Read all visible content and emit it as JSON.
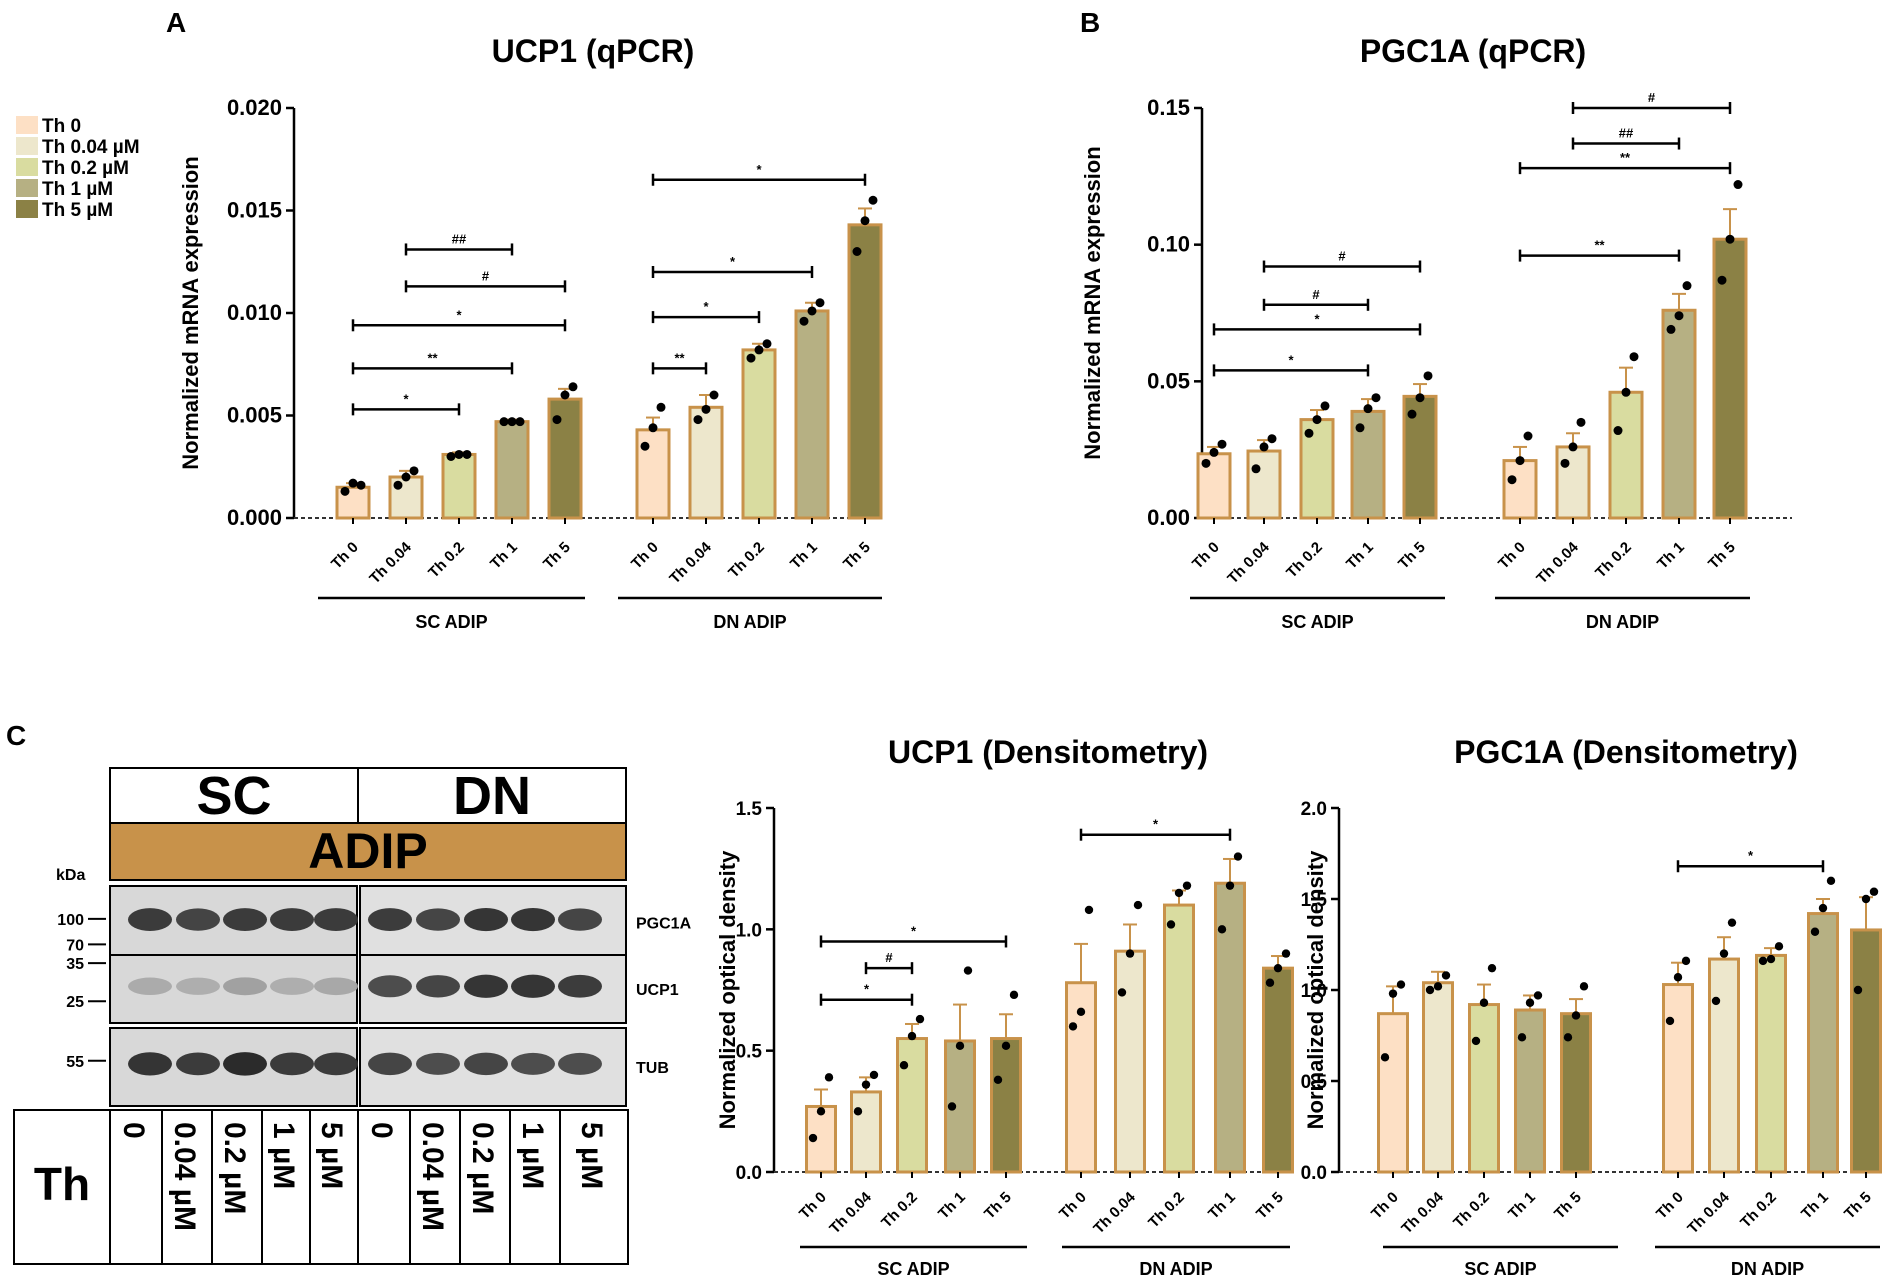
{
  "panels": {
    "A": "A",
    "B": "B",
    "C": "C"
  },
  "colors": {
    "Th 0": "#fde0c5",
    "Th 0.04": "#ede7cc",
    "Th 0.2": "#d9dca0",
    "Th 1": "#b6b083",
    "Th 5": "#8b8145",
    "outline": "#c8924a",
    "adip_band": "#c8924a"
  },
  "legend": [
    "Th 0",
    "Th 0.04 µM",
    "Th 0.2 µM",
    "Th 1 µM",
    "Th 5 µM"
  ],
  "chart_data": [
    {
      "id": "A",
      "type": "bar",
      "title": "UCP1 (qPCR)",
      "ylabel": "Normalized mRNA expression",
      "ylim": [
        0,
        0.02
      ],
      "yticks": [
        0,
        0.005,
        0.01,
        0.015,
        0.02
      ],
      "ytick_labels": [
        "0.000",
        "0.005",
        "0.010",
        "0.015",
        "0.020"
      ],
      "categories": [
        "Th 0",
        "Th 0.04",
        "Th 0.2",
        "Th 1",
        "Th 5"
      ],
      "groups": [
        {
          "name": "SC ADIP",
          "values": [
            0.0015,
            0.002,
            0.0031,
            0.0047,
            0.0058
          ],
          "errors": [
            0.0002,
            0.0003,
            0.0001,
            0.0001,
            0.0005
          ],
          "points": [
            [
              0.0013,
              0.0017,
              0.0016
            ],
            [
              0.0016,
              0.002,
              0.0023
            ],
            [
              0.003,
              0.0031,
              0.0031
            ],
            [
              0.0047,
              0.0047,
              0.0047
            ],
            [
              0.0048,
              0.006,
              0.0064
            ]
          ],
          "sig": [
            {
              "from": 0,
              "to": 2,
              "label": "*",
              "y": 0.0053
            },
            {
              "from": 0,
              "to": 3,
              "label": "**",
              "y": 0.0073
            },
            {
              "from": 0,
              "to": 4,
              "label": "*",
              "y": 0.0094
            },
            {
              "from": 1,
              "to": 4,
              "label": "#",
              "y": 0.0113
            },
            {
              "from": 1,
              "to": 3,
              "label": "##",
              "y": 0.0131
            }
          ]
        },
        {
          "name": "DN ADIP",
          "values": [
            0.0043,
            0.0054,
            0.0082,
            0.0101,
            0.0143
          ],
          "errors": [
            0.0006,
            0.0006,
            0.0003,
            0.0004,
            0.0008
          ],
          "points": [
            [
              0.0035,
              0.0044,
              0.0054
            ],
            [
              0.0048,
              0.0053,
              0.006
            ],
            [
              0.0078,
              0.0082,
              0.0085
            ],
            [
              0.0096,
              0.0101,
              0.0105
            ],
            [
              0.013,
              0.0145,
              0.0155
            ]
          ],
          "sig": [
            {
              "from": 0,
              "to": 1,
              "label": "**",
              "y": 0.0073
            },
            {
              "from": 0,
              "to": 2,
              "label": "*",
              "y": 0.0098
            },
            {
              "from": 0,
              "to": 3,
              "label": "*",
              "y": 0.012
            },
            {
              "from": 0,
              "to": 4,
              "label": "*",
              "y": 0.0165
            }
          ]
        }
      ]
    },
    {
      "id": "B",
      "type": "bar",
      "title": "PGC1A (qPCR)",
      "ylabel": "Normalized mRNA expression",
      "ylim": [
        0,
        0.15
      ],
      "yticks": [
        0,
        0.05,
        0.1,
        0.15
      ],
      "ytick_labels": [
        "0.00",
        "0.05",
        "0.10",
        "0.15"
      ],
      "categories": [
        "Th 0",
        "Th 0.04",
        "Th 0.2",
        "Th 1",
        "Th 5"
      ],
      "groups": [
        {
          "name": "SC ADIP",
          "values": [
            0.0235,
            0.0245,
            0.036,
            0.039,
            0.0445
          ],
          "errors": [
            0.0025,
            0.004,
            0.0035,
            0.0045,
            0.0045
          ],
          "points": [
            [
              0.02,
              0.024,
              0.027
            ],
            [
              0.018,
              0.026,
              0.029
            ],
            [
              0.031,
              0.036,
              0.041
            ],
            [
              0.033,
              0.04,
              0.044
            ],
            [
              0.038,
              0.044,
              0.052
            ]
          ],
          "sig": [
            {
              "from": 0,
              "to": 3,
              "label": "*",
              "y": 0.054
            },
            {
              "from": 0,
              "to": 4,
              "label": "*",
              "y": 0.069
            },
            {
              "from": 1,
              "to": 3,
              "label": "#",
              "y": 0.078
            },
            {
              "from": 1,
              "to": 4,
              "label": "#",
              "y": 0.092
            }
          ]
        },
        {
          "name": "DN ADIP",
          "values": [
            0.021,
            0.026,
            0.046,
            0.076,
            0.102
          ],
          "errors": [
            0.005,
            0.005,
            0.009,
            0.006,
            0.011
          ],
          "points": [
            [
              0.014,
              0.021,
              0.03
            ],
            [
              0.02,
              0.026,
              0.035
            ],
            [
              0.032,
              0.046,
              0.059
            ],
            [
              0.069,
              0.074,
              0.085
            ],
            [
              0.087,
              0.102,
              0.122
            ]
          ],
          "sig": [
            {
              "from": 0,
              "to": 3,
              "label": "**",
              "y": 0.096
            },
            {
              "from": 0,
              "to": 4,
              "label": "**",
              "y": 0.128
            },
            {
              "from": 1,
              "to": 3,
              "label": "##",
              "y": 0.137
            },
            {
              "from": 1,
              "to": 4,
              "label": "#",
              "y": 0.15
            }
          ]
        }
      ]
    },
    {
      "id": "C1",
      "type": "bar",
      "title": "UCP1 (Densitometry)",
      "ylabel": "Normalized optical density",
      "ylim": [
        0,
        1.5
      ],
      "yticks": [
        0,
        0.5,
        1,
        1.5
      ],
      "ytick_labels": [
        "0.0",
        "0.5",
        "1.0",
        "1.5"
      ],
      "categories": [
        "Th 0",
        "Th 0.04",
        "Th 0.2",
        "Th 1",
        "Th 5"
      ],
      "groups": [
        {
          "name": "SC ADIP",
          "values": [
            0.27,
            0.33,
            0.55,
            0.54,
            0.55
          ],
          "errors": [
            0.07,
            0.06,
            0.06,
            0.15,
            0.1
          ],
          "points": [
            [
              0.14,
              0.25,
              0.39
            ],
            [
              0.25,
              0.36,
              0.4
            ],
            [
              0.44,
              0.56,
              0.63
            ],
            [
              0.27,
              0.52,
              0.83
            ],
            [
              0.38,
              0.52,
              0.73
            ]
          ],
          "sig": [
            {
              "from": 0,
              "to": 2,
              "label": "*",
              "y": 0.71
            },
            {
              "from": 1,
              "to": 2,
              "label": "#",
              "y": 0.84
            },
            {
              "from": 0,
              "to": 4,
              "label": "*",
              "y": 0.95
            }
          ]
        },
        {
          "name": "DN ADIP",
          "values": [
            0.78,
            0.91,
            1.1,
            1.19,
            0.84
          ],
          "errors": [
            0.16,
            0.11,
            0.06,
            0.1,
            0.05
          ],
          "points": [
            [
              0.6,
              0.66,
              1.08
            ],
            [
              0.74,
              0.9,
              1.1
            ],
            [
              1.02,
              1.15,
              1.18
            ],
            [
              1.0,
              1.18,
              1.3
            ],
            [
              0.78,
              0.84,
              0.9
            ]
          ],
          "sig": [
            {
              "from": 0,
              "to": 3,
              "label": "*",
              "y": 1.39
            }
          ]
        }
      ]
    },
    {
      "id": "C2",
      "type": "bar",
      "title": "PGC1A (Densitometry)",
      "ylabel": "Normalized optical density",
      "ylim": [
        0,
        2
      ],
      "yticks": [
        0,
        0.5,
        1,
        1.5,
        2
      ],
      "ytick_labels": [
        "0.0",
        "0.5",
        "1.0",
        "1.5",
        "2.0"
      ],
      "categories": [
        "Th 0",
        "Th 0.04",
        "Th 0.2",
        "Th 1",
        "Th 5"
      ],
      "groups": [
        {
          "name": "SC ADIP",
          "values": [
            0.87,
            1.04,
            0.92,
            0.89,
            0.87
          ],
          "errors": [
            0.15,
            0.06,
            0.11,
            0.08,
            0.08
          ],
          "points": [
            [
              0.63,
              0.98,
              1.03
            ],
            [
              1.0,
              1.02,
              1.08
            ],
            [
              0.72,
              0.93,
              1.12
            ],
            [
              0.74,
              0.93,
              0.97
            ],
            [
              0.74,
              0.86,
              1.02
            ]
          ],
          "sig": []
        },
        {
          "name": "DN ADIP",
          "values": [
            1.03,
            1.17,
            1.19,
            1.42,
            1.33
          ],
          "errors": [
            0.12,
            0.12,
            0.04,
            0.08,
            0.18
          ],
          "points": [
            [
              0.83,
              1.07,
              1.16
            ],
            [
              0.94,
              1.2,
              1.37
            ],
            [
              1.16,
              1.17,
              1.24
            ],
            [
              1.32,
              1.45,
              1.6
            ],
            [
              1.0,
              1.5,
              1.54
            ]
          ],
          "sig": [
            {
              "from": 0,
              "to": 3,
              "label": "*",
              "y": 1.68
            }
          ]
        }
      ]
    }
  ],
  "blot": {
    "header_groups": [
      "SC",
      "DN"
    ],
    "band_label": "ADIP",
    "kda_label": "kDa",
    "markers": [
      {
        "label": "100",
        "row": 0,
        "pos": 0.45
      },
      {
        "label": "70",
        "row": 0,
        "pos": 0.8
      },
      {
        "label": "35",
        "row": 1,
        "pos": 0.12
      },
      {
        "label": "25",
        "row": 1,
        "pos": 0.68
      },
      {
        "label": "55",
        "row": 2,
        "pos": 0.42
      }
    ],
    "proteins": [
      "PGC1A",
      "UCP1",
      "TUB"
    ],
    "treatment_label": "Th",
    "doses": [
      "0",
      "0.04 µM",
      "0.2 µM",
      "1 µM",
      "5 µM",
      "0",
      "0.04 µM",
      "0.2 µM",
      "1 µM",
      "5 µM"
    ],
    "band_intensity": [
      [
        0.85,
        0.8,
        0.85,
        0.85,
        0.85,
        0.85,
        0.8,
        0.9,
        0.9,
        0.8
      ],
      [
        0.18,
        0.16,
        0.24,
        0.16,
        0.2,
        0.75,
        0.8,
        0.9,
        0.9,
        0.85
      ],
      [
        0.9,
        0.85,
        0.95,
        0.85,
        0.85,
        0.8,
        0.75,
        0.8,
        0.75,
        0.75
      ]
    ]
  }
}
